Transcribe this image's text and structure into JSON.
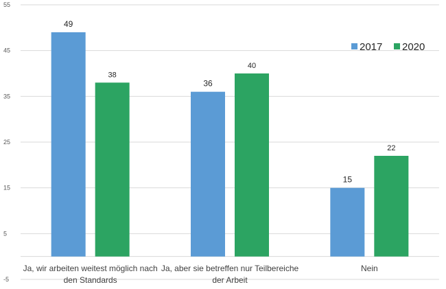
{
  "chart_data": {
    "type": "bar",
    "title": "",
    "xlabel": "",
    "ylabel": "",
    "ylim": [
      -5,
      55
    ],
    "yticks": [
      -5,
      5,
      15,
      25,
      35,
      45,
      55
    ],
    "grid": true,
    "legend_position": "top-right",
    "categories": [
      [
        "Ja, wir arbeiten weitest möglich nach",
        "den Standards"
      ],
      [
        "Ja, aber sie betreffen nur Teilbereiche",
        "der Arbeit"
      ],
      [
        "Nein"
      ]
    ],
    "series": [
      {
        "name": "2017",
        "color": "#5b9bd5",
        "values": [
          49,
          36,
          15
        ],
        "labels": [
          "49",
          "36",
          "15"
        ]
      },
      {
        "name": "2020",
        "color": "#2ca462",
        "values": [
          38,
          40,
          22
        ],
        "labels": [
          "38",
          "40",
          "22"
        ]
      }
    ]
  }
}
